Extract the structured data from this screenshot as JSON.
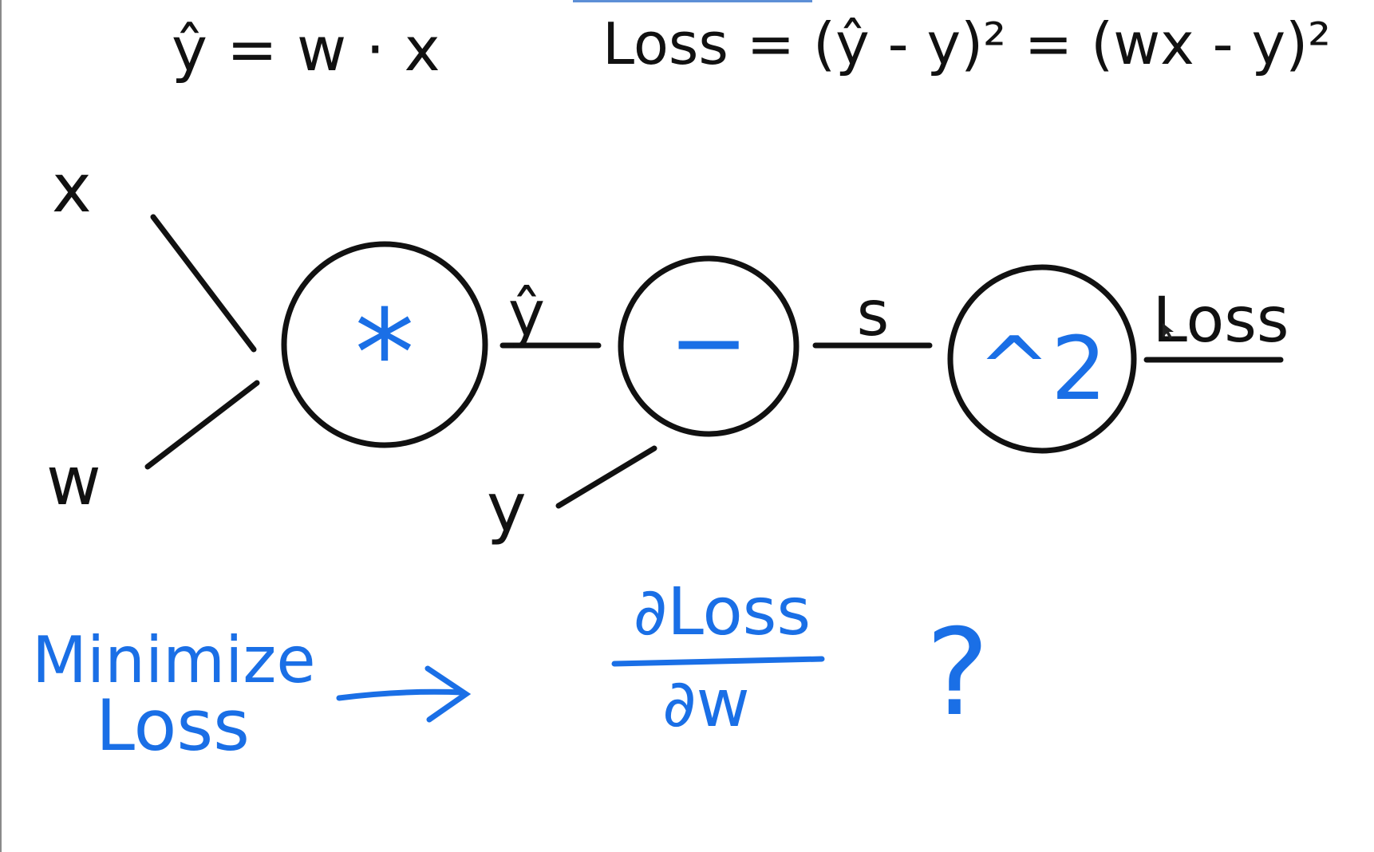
{
  "equations": {
    "prediction": "ŷ = w · x",
    "loss": "Loss = (ŷ - y)² = (wx - y)²"
  },
  "graph": {
    "inputs": {
      "x": "x",
      "w": "w",
      "y": "y"
    },
    "nodes": {
      "multiply": "*",
      "subtract": "−",
      "square": "^2"
    },
    "edges": {
      "y_hat": "ŷ",
      "s": "s",
      "loss": "Loss"
    }
  },
  "notes": {
    "minimize_line1": "Minimize",
    "minimize_line2": "Loss",
    "derivative_numerator": "∂Loss",
    "derivative_denominator": "∂w",
    "question": "?"
  },
  "colors": {
    "ink": "#111111",
    "accent": "#1a6fe6"
  }
}
